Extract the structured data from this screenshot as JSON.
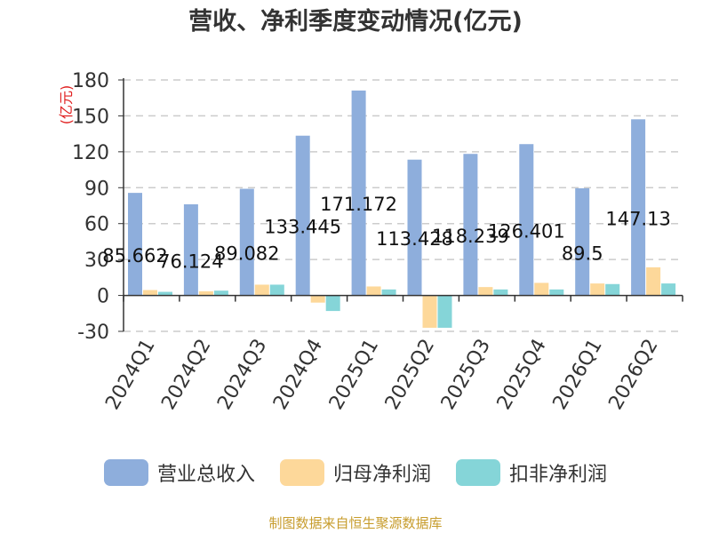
{
  "chart_data": {
    "type": "bar",
    "title": "营收、净利季度变动情况(亿元)",
    "ylabel": "(亿元)",
    "ylim": [
      -30,
      180
    ],
    "yticks": [
      -30,
      0,
      30,
      60,
      90,
      120,
      150,
      180
    ],
    "grid": true,
    "legend_position": "bottom",
    "categories": [
      "2024Q1",
      "2024Q2",
      "2024Q3",
      "2024Q4",
      "2025Q1",
      "2025Q2",
      "2025Q3",
      "2025Q4",
      "2026Q1",
      "2026Q2"
    ],
    "series": [
      {
        "name": "营业总收入",
        "color": "#8eaedc",
        "values": [
          85.662,
          76.124,
          89.082,
          133.445,
          171.172,
          113.428,
          118.239,
          126.401,
          89.5,
          147.13
        ],
        "labels": [
          "85.662",
          "76.124",
          "89.082",
          "133.445",
          "171.172",
          "113.428",
          "118.239",
          "126.401",
          "89.5",
          "147.13"
        ]
      },
      {
        "name": "归母净利润",
        "color": "#fdd89a",
        "values": [
          4.5,
          3.5,
          9,
          -6,
          7.5,
          -27,
          7,
          10.5,
          10,
          23.5
        ]
      },
      {
        "name": "扣非净利润",
        "color": "#85d5d8",
        "values": [
          3,
          4,
          9,
          -13,
          5,
          -27,
          5,
          5,
          9.5,
          10
        ]
      }
    ]
  },
  "source_text": "制图数据来自恒生聚源数据库"
}
